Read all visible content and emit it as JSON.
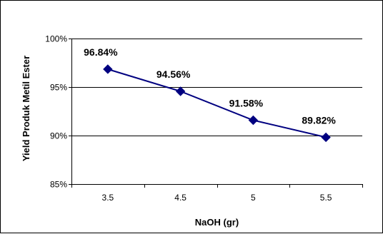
{
  "chart_data": {
    "type": "line",
    "title": "",
    "xlabel": "NaOH (gr)",
    "ylabel": "Yield Produk  Metil Ester",
    "categories": [
      "3.5",
      "4.5",
      "5",
      "5.5"
    ],
    "series": [
      {
        "values": [
          96.84,
          94.56,
          91.58,
          89.82
        ],
        "data_labels": [
          "96.84%",
          "94.56%",
          "91.58%",
          "89.82%"
        ],
        "color": "#000080",
        "marker": "diamond"
      }
    ],
    "ylim": [
      85,
      100
    ],
    "yticks": [
      85,
      90,
      95,
      100
    ],
    "ytick_labels": [
      "85%",
      "90%",
      "95%",
      "100%"
    ],
    "grid": "horizontal",
    "legend": "none",
    "plot_background": "#ffffff",
    "gridline_color": "#000000"
  }
}
